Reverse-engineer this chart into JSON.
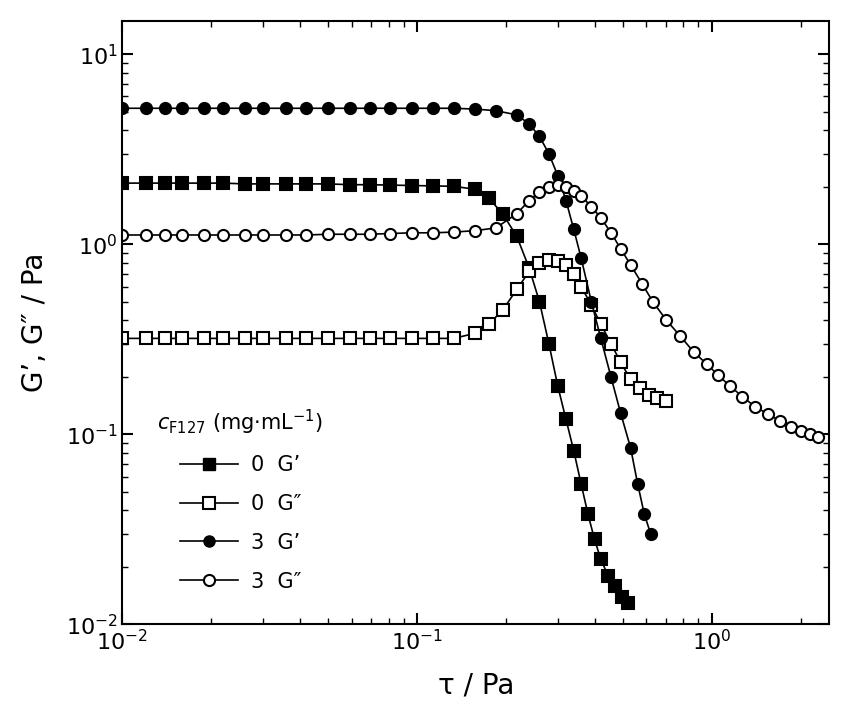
{
  "title": "",
  "xlabel": "τ / Pa",
  "ylabel": "G’, G″ / Pa",
  "xlim": [
    0.01,
    2.5
  ],
  "ylim": [
    0.01,
    15
  ],
  "background_color": "#ffffff",
  "series": [
    {
      "label": "0  G'",
      "marker": "s",
      "filled": true,
      "color": "black",
      "x": [
        0.01,
        0.012,
        0.014,
        0.016,
        0.019,
        0.022,
        0.026,
        0.03,
        0.036,
        0.042,
        0.05,
        0.059,
        0.069,
        0.081,
        0.096,
        0.113,
        0.133,
        0.157,
        0.175,
        0.195,
        0.218,
        0.24,
        0.26,
        0.28,
        0.3,
        0.32,
        0.34,
        0.36,
        0.38,
        0.4,
        0.42,
        0.445,
        0.47,
        0.495,
        0.52
      ],
      "y": [
        2.1,
        2.1,
        2.1,
        2.1,
        2.1,
        2.1,
        2.08,
        2.08,
        2.08,
        2.08,
        2.08,
        2.06,
        2.06,
        2.05,
        2.04,
        2.03,
        2.02,
        1.95,
        1.75,
        1.45,
        1.1,
        0.75,
        0.5,
        0.3,
        0.18,
        0.12,
        0.082,
        0.055,
        0.038,
        0.028,
        0.022,
        0.018,
        0.016,
        0.014,
        0.013
      ]
    },
    {
      "label": "0  G\"",
      "marker": "s",
      "filled": false,
      "color": "black",
      "x": [
        0.01,
        0.012,
        0.014,
        0.016,
        0.019,
        0.022,
        0.026,
        0.03,
        0.036,
        0.042,
        0.05,
        0.059,
        0.069,
        0.081,
        0.096,
        0.113,
        0.133,
        0.157,
        0.175,
        0.195,
        0.218,
        0.24,
        0.26,
        0.28,
        0.3,
        0.32,
        0.34,
        0.36,
        0.39,
        0.42,
        0.455,
        0.49,
        0.53,
        0.57,
        0.61,
        0.65,
        0.7
      ],
      "y": [
        0.32,
        0.32,
        0.32,
        0.32,
        0.32,
        0.32,
        0.32,
        0.32,
        0.32,
        0.32,
        0.32,
        0.32,
        0.32,
        0.32,
        0.32,
        0.32,
        0.32,
        0.34,
        0.38,
        0.45,
        0.58,
        0.72,
        0.8,
        0.83,
        0.82,
        0.78,
        0.7,
        0.6,
        0.48,
        0.38,
        0.3,
        0.24,
        0.195,
        0.175,
        0.162,
        0.155,
        0.15
      ]
    },
    {
      "label": "3  G'",
      "marker": "o",
      "filled": true,
      "color": "black",
      "x": [
        0.01,
        0.012,
        0.014,
        0.016,
        0.019,
        0.022,
        0.026,
        0.03,
        0.036,
        0.042,
        0.05,
        0.059,
        0.069,
        0.081,
        0.096,
        0.113,
        0.133,
        0.157,
        0.185,
        0.218,
        0.24,
        0.26,
        0.28,
        0.3,
        0.32,
        0.34,
        0.36,
        0.39,
        0.42,
        0.455,
        0.49,
        0.53,
        0.56,
        0.59,
        0.62
      ],
      "y": [
        5.2,
        5.2,
        5.2,
        5.2,
        5.2,
        5.2,
        5.2,
        5.2,
        5.2,
        5.2,
        5.2,
        5.2,
        5.2,
        5.2,
        5.2,
        5.2,
        5.2,
        5.15,
        5.05,
        4.8,
        4.3,
        3.7,
        3.0,
        2.3,
        1.7,
        1.2,
        0.85,
        0.5,
        0.32,
        0.2,
        0.13,
        0.085,
        0.055,
        0.038,
        0.03
      ]
    },
    {
      "label": "3  G\"",
      "marker": "o",
      "filled": false,
      "color": "black",
      "x": [
        0.01,
        0.012,
        0.014,
        0.016,
        0.019,
        0.022,
        0.026,
        0.03,
        0.036,
        0.042,
        0.05,
        0.059,
        0.069,
        0.081,
        0.096,
        0.113,
        0.133,
        0.157,
        0.185,
        0.218,
        0.24,
        0.26,
        0.28,
        0.3,
        0.32,
        0.34,
        0.36,
        0.39,
        0.42,
        0.455,
        0.49,
        0.53,
        0.58,
        0.63,
        0.7,
        0.78,
        0.87,
        0.96,
        1.05,
        1.15,
        1.27,
        1.4,
        1.55,
        1.7,
        1.85,
        2.0,
        2.15,
        2.3
      ],
      "y": [
        1.12,
        1.12,
        1.12,
        1.12,
        1.12,
        1.12,
        1.12,
        1.12,
        1.12,
        1.12,
        1.13,
        1.13,
        1.13,
        1.14,
        1.15,
        1.15,
        1.16,
        1.18,
        1.22,
        1.45,
        1.7,
        1.88,
        2.0,
        2.05,
        2.0,
        1.92,
        1.8,
        1.58,
        1.38,
        1.15,
        0.95,
        0.78,
        0.62,
        0.5,
        0.4,
        0.33,
        0.27,
        0.235,
        0.205,
        0.18,
        0.158,
        0.14,
        0.128,
        0.118,
        0.11,
        0.104,
        0.1,
        0.097
      ]
    }
  ],
  "markersize": 8,
  "linewidth": 1.2
}
